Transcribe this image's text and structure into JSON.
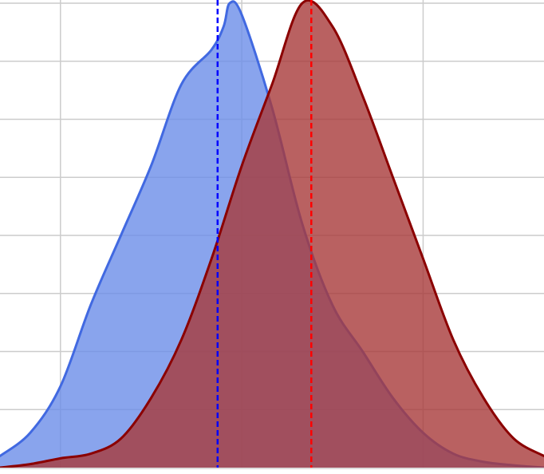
{
  "chart_data": {
    "type": "area",
    "title": "",
    "xlabel": "",
    "ylabel": "",
    "grid": true,
    "legend": "none",
    "xlim": [
      -4.0,
      5.0
    ],
    "ylim": [
      0.0,
      0.4
    ],
    "x_grid": [
      -3.0,
      0.0,
      3.0
    ],
    "y_grid": [
      0.05,
      0.1,
      0.15,
      0.2,
      0.25,
      0.3,
      0.35,
      0.4
    ],
    "series": [
      {
        "color": "#4169E1",
        "fill": "#6B8DE8",
        "fill_opacity": 0.8,
        "mean": -0.4,
        "x": [
          -4.0,
          -3.5,
          -3.0,
          -2.5,
          -2.0,
          -1.5,
          -1.0,
          -0.5,
          -0.3,
          -0.2,
          0.0,
          0.5,
          1.0,
          1.5,
          2.0,
          2.5,
          3.0,
          3.5,
          4.0,
          4.5,
          5.0
        ],
        "y": [
          0.01,
          0.03,
          0.07,
          0.14,
          0.2,
          0.26,
          0.33,
          0.36,
          0.38,
          0.4,
          0.39,
          0.31,
          0.21,
          0.14,
          0.1,
          0.06,
          0.03,
          0.012,
          0.005,
          0.002,
          0.0
        ]
      },
      {
        "color": "#8B0000",
        "fill": "#A83A3A",
        "fill_opacity": 0.8,
        "mean": 1.15,
        "x": [
          -4.0,
          -3.5,
          -3.0,
          -2.5,
          -2.0,
          -1.5,
          -1.0,
          -0.5,
          0.0,
          0.5,
          1.0,
          1.5,
          2.0,
          2.5,
          3.0,
          3.5,
          4.0,
          4.5,
          5.0
        ],
        "y": [
          0.0,
          0.003,
          0.008,
          0.012,
          0.025,
          0.06,
          0.11,
          0.18,
          0.26,
          0.33,
          0.4,
          0.38,
          0.32,
          0.25,
          0.18,
          0.11,
          0.06,
          0.025,
          0.01
        ]
      }
    ]
  }
}
